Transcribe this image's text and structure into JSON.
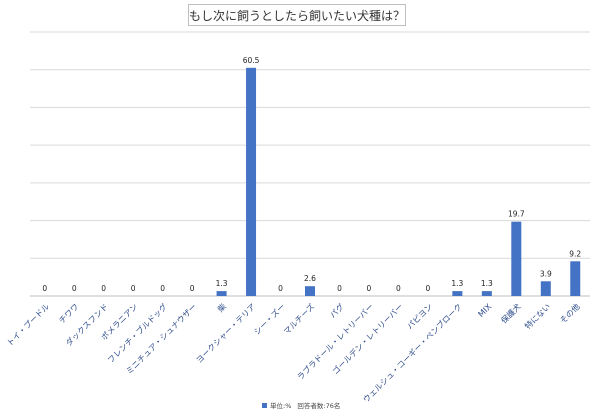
{
  "chart_data": {
    "type": "bar",
    "title": "もし次に飼うとしたら飼いたい犬種は？",
    "categories": [
      "トイ・プードル",
      "チワワ",
      "ダックスフンド",
      "ポメラニアン",
      "フレンチ・ブルドッグ",
      "ミニチュア・シュナウザー",
      "柴",
      "ヨークシャー・テリア",
      "シー・ズー",
      "マルチーズ",
      "パグ",
      "ラブラドール・レトリーバー",
      "ゴールデン・レトリーバー",
      "パピヨン",
      "ウェルシュ・コーギー・ペンブローク",
      "MIX",
      "保護犬",
      "特にない",
      "その他"
    ],
    "values": [
      0,
      0,
      0,
      0,
      0,
      0,
      1.3,
      60.5,
      0,
      2.6,
      0,
      0,
      0,
      0,
      1.3,
      1.3,
      19.7,
      3.9,
      9.2
    ],
    "data_labels": [
      "0",
      "0",
      "0",
      "0",
      "0",
      "0",
      "1.3",
      "60.5",
      "0",
      "2.6",
      "0",
      "0",
      "0",
      "0",
      "1.3",
      "1.3",
      "19.7",
      "3.9",
      "9.2"
    ],
    "series": [
      {
        "name": "単位:%",
        "values": [
          0,
          0,
          0,
          0,
          0,
          0,
          1.3,
          60.5,
          0,
          2.6,
          0,
          0,
          0,
          0,
          1.3,
          1.3,
          19.7,
          3.9,
          9.2
        ]
      }
    ],
    "note": "回答者数:76名",
    "ylim": [
      0,
      70
    ],
    "grid": true,
    "legend_position": "bottom",
    "bar_color": "#4472c4",
    "label_color": "#2f4d8c"
  }
}
